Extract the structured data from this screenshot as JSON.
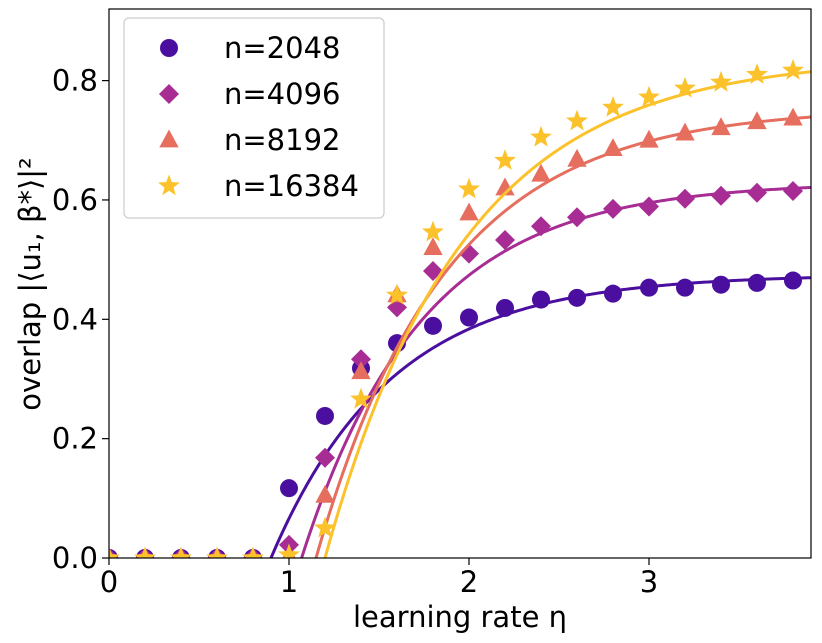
{
  "chart_data": {
    "type": "scatter",
    "xlabel": "learning rate η",
    "ylabel": "overlap |⟨u₁, β*⟩|²",
    "xlim": [
      0,
      3.9
    ],
    "ylim": [
      0,
      0.92
    ],
    "xticks": [
      0,
      1,
      2,
      3
    ],
    "xtick_labels": [
      "0",
      "1",
      "2",
      "3"
    ],
    "yticks": [
      0.0,
      0.2,
      0.4,
      0.6,
      0.8
    ],
    "ytick_labels": [
      "0.0",
      "0.2",
      "0.4",
      "0.6",
      "0.8"
    ],
    "legend_position": "top-left",
    "grid": false,
    "series": [
      {
        "name": "n=2048",
        "marker": "circle",
        "color": "#4a0f9e",
        "points": [
          [
            0.0,
            0.0
          ],
          [
            0.2,
            0.0
          ],
          [
            0.4,
            0.0
          ],
          [
            0.6,
            0.0
          ],
          [
            0.8,
            0.0
          ],
          [
            1.0,
            0.117
          ],
          [
            1.2,
            0.238
          ],
          [
            1.4,
            0.318
          ],
          [
            1.6,
            0.36
          ],
          [
            1.8,
            0.389
          ],
          [
            2.0,
            0.403
          ],
          [
            2.2,
            0.419
          ],
          [
            2.4,
            0.433
          ],
          [
            2.6,
            0.436
          ],
          [
            2.8,
            0.443
          ],
          [
            3.0,
            0.453
          ],
          [
            3.2,
            0.453
          ],
          [
            3.4,
            0.458
          ],
          [
            3.6,
            0.461
          ],
          [
            3.8,
            0.465
          ]
        ],
        "curve": {
          "start": 0.9,
          "asymptote": 0.475,
          "rate": 1.5
        }
      },
      {
        "name": "n=4096",
        "marker": "diamond",
        "color": "#a72d95",
        "points": [
          [
            0.0,
            0.0
          ],
          [
            0.2,
            0.0
          ],
          [
            0.4,
            0.0
          ],
          [
            0.6,
            0.0
          ],
          [
            0.8,
            0.0
          ],
          [
            1.0,
            0.022
          ],
          [
            1.2,
            0.168
          ],
          [
            1.4,
            0.333
          ],
          [
            1.6,
            0.42
          ],
          [
            1.8,
            0.481
          ],
          [
            2.0,
            0.51
          ],
          [
            2.2,
            0.533
          ],
          [
            2.4,
            0.556
          ],
          [
            2.6,
            0.571
          ],
          [
            2.8,
            0.585
          ],
          [
            3.0,
            0.589
          ],
          [
            3.2,
            0.602
          ],
          [
            3.4,
            0.607
          ],
          [
            3.6,
            0.612
          ],
          [
            3.8,
            0.615
          ]
        ],
        "curve": {
          "start": 1.07,
          "asymptote": 0.63,
          "rate": 1.5
        }
      },
      {
        "name": "n=8192",
        "marker": "triangle",
        "color": "#e66e5e",
        "points": [
          [
            0.0,
            0.0
          ],
          [
            0.2,
            0.0
          ],
          [
            0.4,
            0.0
          ],
          [
            0.6,
            0.0
          ],
          [
            0.8,
            0.0
          ],
          [
            1.0,
            0.003
          ],
          [
            1.2,
            0.105
          ],
          [
            1.4,
            0.312
          ],
          [
            1.6,
            0.441
          ],
          [
            1.8,
            0.52
          ],
          [
            2.0,
            0.578
          ],
          [
            2.2,
            0.62
          ],
          [
            2.4,
            0.643
          ],
          [
            2.6,
            0.668
          ],
          [
            2.8,
            0.686
          ],
          [
            3.0,
            0.7
          ],
          [
            3.2,
            0.712
          ],
          [
            3.4,
            0.721
          ],
          [
            3.6,
            0.731
          ],
          [
            3.8,
            0.737
          ]
        ],
        "curve": {
          "start": 1.15,
          "asymptote": 0.755,
          "rate": 1.4
        }
      },
      {
        "name": "n=16384",
        "marker": "star",
        "color": "#fcc22c",
        "points": [
          [
            0.0,
            0.0
          ],
          [
            0.2,
            0.0
          ],
          [
            0.4,
            0.0
          ],
          [
            0.6,
            0.0
          ],
          [
            0.8,
            0.0
          ],
          [
            1.0,
            0.005
          ],
          [
            1.2,
            0.05
          ],
          [
            1.4,
            0.266
          ],
          [
            1.6,
            0.44
          ],
          [
            1.8,
            0.546
          ],
          [
            2.0,
            0.618
          ],
          [
            2.2,
            0.666
          ],
          [
            2.4,
            0.705
          ],
          [
            2.6,
            0.732
          ],
          [
            2.8,
            0.755
          ],
          [
            3.0,
            0.772
          ],
          [
            3.2,
            0.787
          ],
          [
            3.4,
            0.797
          ],
          [
            3.6,
            0.81
          ],
          [
            3.8,
            0.817
          ]
        ],
        "curve": {
          "start": 1.2,
          "asymptote": 0.84,
          "rate": 1.3
        }
      }
    ]
  }
}
